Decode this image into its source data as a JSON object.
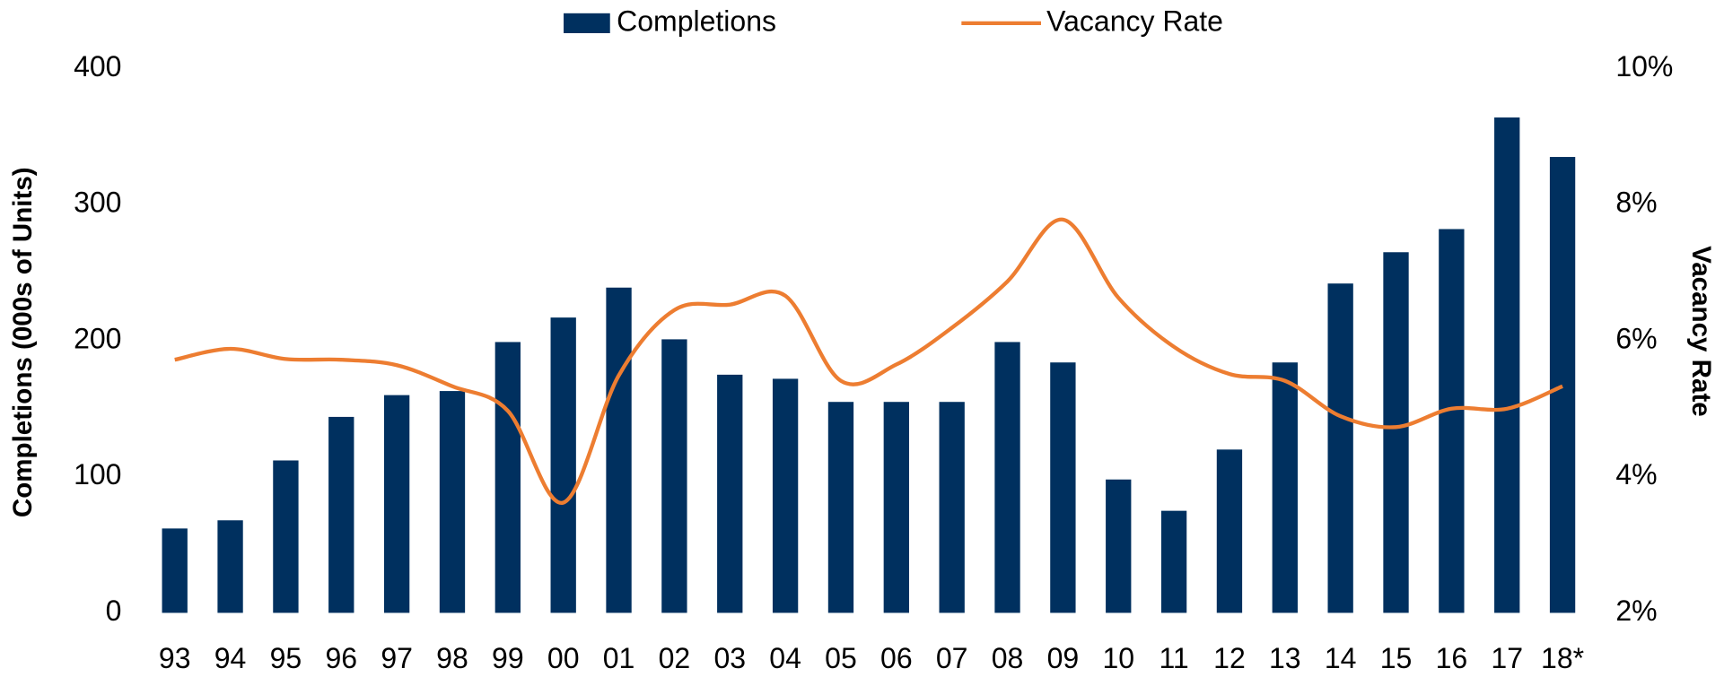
{
  "chart_data": {
    "type": "bar_line",
    "categories": [
      "93",
      "94",
      "95",
      "96",
      "97",
      "98",
      "99",
      "00",
      "01",
      "02",
      "03",
      "04",
      "05",
      "06",
      "07",
      "08",
      "09",
      "10",
      "11",
      "12",
      "13",
      "14",
      "15",
      "16",
      "17",
      "18*"
    ],
    "series": [
      {
        "name": "Completions",
        "color": "#00305f",
        "type": "bar",
        "values": [
          62,
          68,
          112,
          144,
          160,
          163,
          199,
          217,
          239,
          201,
          175,
          172,
          155,
          155,
          155,
          199,
          184,
          98,
          75,
          120,
          184,
          242,
          265,
          282,
          364,
          335
        ]
      },
      {
        "name": "Vacancy Rate",
        "color": "#ed7d31",
        "type": "line",
        "axis": "y2",
        "values": [
          5.72,
          5.88,
          5.73,
          5.72,
          5.64,
          5.33,
          4.97,
          3.62,
          5.49,
          6.45,
          6.53,
          6.66,
          5.41,
          5.65,
          6.19,
          6.87,
          7.78,
          6.63,
          5.91,
          5.51,
          5.41,
          4.89,
          4.73,
          5.0,
          5.0,
          5.33
        ]
      }
    ],
    "ylabel": "Completions (000s of Units)",
    "y2label": "Vacancy Rate",
    "ylim": [
      0,
      400
    ],
    "yticks": [
      0,
      100,
      200,
      300,
      400
    ],
    "y2lim": [
      2,
      10
    ],
    "y2ticks": [
      {
        "value": 2,
        "label": "2%"
      },
      {
        "value": 4,
        "label": "4%"
      },
      {
        "value": 6,
        "label": "6%"
      },
      {
        "value": 8,
        "label": "8%"
      },
      {
        "value": 10,
        "label": "10%"
      }
    ],
    "legend": "top"
  }
}
